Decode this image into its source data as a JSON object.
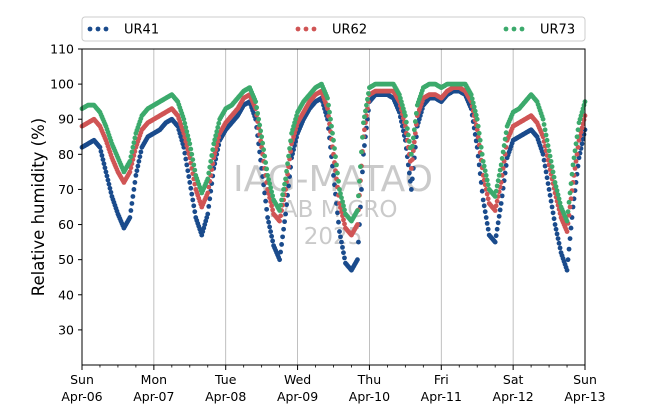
{
  "chart_data": {
    "type": "scatter",
    "title": "",
    "xlabel": "",
    "ylabel": "Relative humidity (%)",
    "ylim": [
      20,
      110
    ],
    "yticks": [
      30,
      40,
      50,
      60,
      70,
      80,
      90,
      100,
      110
    ],
    "xlim": [
      "2025-04-06 00:00",
      "2025-04-13 00:00"
    ],
    "x_ticks": [
      {
        "day": "Sun",
        "date": "Apr-06"
      },
      {
        "day": "Mon",
        "date": "Apr-07"
      },
      {
        "day": "Tue",
        "date": "Apr-08"
      },
      {
        "day": "Wed",
        "date": "Apr-09"
      },
      {
        "day": "Thu",
        "date": "Apr-10"
      },
      {
        "day": "Fri",
        "date": "Apr-11"
      },
      {
        "day": "Sat",
        "date": "Apr-12"
      },
      {
        "day": "Sun",
        "date": "Apr-13"
      }
    ],
    "x_minor_ticks_per_day": 4,
    "grid": "vertical at day boundaries",
    "legend_position": "top",
    "watermark": [
      "IAG-MATAO",
      "LAB MICRO",
      "2025"
    ],
    "sampling": "hourly",
    "series": [
      {
        "name": "UR41",
        "color": "#1a4b8c",
        "points": [
          [
            "2025-04-06 00:00",
            82
          ],
          [
            "2025-04-06 02:00",
            83
          ],
          [
            "2025-04-06 04:00",
            84
          ],
          [
            "2025-04-06 06:00",
            82
          ],
          [
            "2025-04-06 08:00",
            75
          ],
          [
            "2025-04-06 10:00",
            68
          ],
          [
            "2025-04-06 12:00",
            63
          ],
          [
            "2025-04-06 14:00",
            59
          ],
          [
            "2025-04-06 16:00",
            62
          ],
          [
            "2025-04-06 18:00",
            74
          ],
          [
            "2025-04-06 20:00",
            82
          ],
          [
            "2025-04-06 22:00",
            85
          ],
          [
            "2025-04-07 00:00",
            86
          ],
          [
            "2025-04-07 02:00",
            87
          ],
          [
            "2025-04-07 04:00",
            89
          ],
          [
            "2025-04-07 06:00",
            90
          ],
          [
            "2025-04-07 08:00",
            88
          ],
          [
            "2025-04-07 10:00",
            82
          ],
          [
            "2025-04-07 12:00",
            72
          ],
          [
            "2025-04-07 14:00",
            62
          ],
          [
            "2025-04-07 16:00",
            57
          ],
          [
            "2025-04-07 18:00",
            63
          ],
          [
            "2025-04-07 20:00",
            76
          ],
          [
            "2025-04-07 22:00",
            84
          ],
          [
            "2025-04-08 00:00",
            87
          ],
          [
            "2025-04-08 02:00",
            89
          ],
          [
            "2025-04-08 04:00",
            91
          ],
          [
            "2025-04-08 06:00",
            94
          ],
          [
            "2025-04-08 08:00",
            95
          ],
          [
            "2025-04-08 10:00",
            90
          ],
          [
            "2025-04-08 12:00",
            76
          ],
          [
            "2025-04-08 14:00",
            62
          ],
          [
            "2025-04-08 16:00",
            54
          ],
          [
            "2025-04-08 18:00",
            50
          ],
          [
            "2025-04-08 20:00",
            63
          ],
          [
            "2025-04-08 22:00",
            79
          ],
          [
            "2025-04-09 00:00",
            86
          ],
          [
            "2025-04-09 02:00",
            90
          ],
          [
            "2025-04-09 04:00",
            93
          ],
          [
            "2025-04-09 06:00",
            95
          ],
          [
            "2025-04-09 08:00",
            96
          ],
          [
            "2025-04-09 10:00",
            90
          ],
          [
            "2025-04-09 12:00",
            74
          ],
          [
            "2025-04-09 14:00",
            58
          ],
          [
            "2025-04-09 16:00",
            49
          ],
          [
            "2025-04-09 18:00",
            47
          ],
          [
            "2025-04-09 20:00",
            50
          ],
          [
            "2025-04-09 22:00",
            80
          ],
          [
            "2025-04-10 00:00",
            95
          ],
          [
            "2025-04-10 02:00",
            97
          ],
          [
            "2025-04-10 04:00",
            97
          ],
          [
            "2025-04-10 06:00",
            97
          ],
          [
            "2025-04-10 08:00",
            96
          ],
          [
            "2025-04-10 10:00",
            92
          ],
          [
            "2025-04-10 12:00",
            84
          ],
          [
            "2025-04-10 14:00",
            70
          ],
          [
            "2025-04-10 16:00",
            88
          ],
          [
            "2025-04-10 18:00",
            94
          ],
          [
            "2025-04-10 20:00",
            96
          ],
          [
            "2025-04-10 22:00",
            96
          ],
          [
            "2025-04-11 00:00",
            95
          ],
          [
            "2025-04-11 02:00",
            97
          ],
          [
            "2025-04-11 04:00",
            98
          ],
          [
            "2025-04-11 06:00",
            98
          ],
          [
            "2025-04-11 08:00",
            97
          ],
          [
            "2025-04-11 10:00",
            93
          ],
          [
            "2025-04-11 12:00",
            82
          ],
          [
            "2025-04-11 14:00",
            67
          ],
          [
            "2025-04-11 16:00",
            57
          ],
          [
            "2025-04-11 18:00",
            55
          ],
          [
            "2025-04-11 20:00",
            66
          ],
          [
            "2025-04-11 22:00",
            79
          ],
          [
            "2025-04-12 00:00",
            84
          ],
          [
            "2025-04-12 02:00",
            85
          ],
          [
            "2025-04-12 04:00",
            86
          ],
          [
            "2025-04-12 06:00",
            87
          ],
          [
            "2025-04-12 08:00",
            85
          ],
          [
            "2025-04-12 10:00",
            80
          ],
          [
            "2025-04-12 12:00",
            70
          ],
          [
            "2025-04-12 14:00",
            60
          ],
          [
            "2025-04-12 16:00",
            52
          ],
          [
            "2025-04-12 18:00",
            47
          ],
          [
            "2025-04-12 20:00",
            65
          ],
          [
            "2025-04-12 22:00",
            79
          ],
          [
            "2025-04-13 00:00",
            87
          ]
        ]
      },
      {
        "name": "UR62",
        "color": "#d05555",
        "points": [
          [
            "2025-04-06 00:00",
            88
          ],
          [
            "2025-04-06 02:00",
            89
          ],
          [
            "2025-04-06 04:00",
            90
          ],
          [
            "2025-04-06 06:00",
            88
          ],
          [
            "2025-04-06 08:00",
            84
          ],
          [
            "2025-04-06 10:00",
            79
          ],
          [
            "2025-04-06 12:00",
            75
          ],
          [
            "2025-04-06 14:00",
            72
          ],
          [
            "2025-04-06 16:00",
            75
          ],
          [
            "2025-04-06 18:00",
            82
          ],
          [
            "2025-04-06 20:00",
            87
          ],
          [
            "2025-04-06 22:00",
            89
          ],
          [
            "2025-04-07 00:00",
            90
          ],
          [
            "2025-04-07 02:00",
            91
          ],
          [
            "2025-04-07 04:00",
            92
          ],
          [
            "2025-04-07 06:00",
            93
          ],
          [
            "2025-04-07 08:00",
            91
          ],
          [
            "2025-04-07 10:00",
            86
          ],
          [
            "2025-04-07 12:00",
            79
          ],
          [
            "2025-04-07 14:00",
            70
          ],
          [
            "2025-04-07 16:00",
            65
          ],
          [
            "2025-04-07 18:00",
            69
          ],
          [
            "2025-04-07 20:00",
            79
          ],
          [
            "2025-04-07 22:00",
            86
          ],
          [
            "2025-04-08 00:00",
            89
          ],
          [
            "2025-04-08 02:00",
            91
          ],
          [
            "2025-04-08 04:00",
            93
          ],
          [
            "2025-04-08 06:00",
            96
          ],
          [
            "2025-04-08 08:00",
            97
          ],
          [
            "2025-04-08 10:00",
            93
          ],
          [
            "2025-04-08 12:00",
            82
          ],
          [
            "2025-04-08 14:00",
            70
          ],
          [
            "2025-04-08 16:00",
            63
          ],
          [
            "2025-04-08 18:00",
            61
          ],
          [
            "2025-04-08 20:00",
            70
          ],
          [
            "2025-04-08 22:00",
            83
          ],
          [
            "2025-04-09 00:00",
            89
          ],
          [
            "2025-04-09 02:00",
            92
          ],
          [
            "2025-04-09 04:00",
            95
          ],
          [
            "2025-04-09 06:00",
            97
          ],
          [
            "2025-04-09 08:00",
            98
          ],
          [
            "2025-04-09 10:00",
            93
          ],
          [
            "2025-04-09 12:00",
            80
          ],
          [
            "2025-04-09 14:00",
            66
          ],
          [
            "2025-04-09 16:00",
            59
          ],
          [
            "2025-04-09 18:00",
            57
          ],
          [
            "2025-04-09 20:00",
            60
          ],
          [
            "2025-04-09 22:00",
            85
          ],
          [
            "2025-04-10 00:00",
            97
          ],
          [
            "2025-04-10 02:00",
            98
          ],
          [
            "2025-04-10 04:00",
            98
          ],
          [
            "2025-04-10 06:00",
            98
          ],
          [
            "2025-04-10 08:00",
            98
          ],
          [
            "2025-04-10 10:00",
            95
          ],
          [
            "2025-04-10 12:00",
            88
          ],
          [
            "2025-04-10 14:00",
            76
          ],
          [
            "2025-04-10 16:00",
            91
          ],
          [
            "2025-04-10 18:00",
            96
          ],
          [
            "2025-04-10 20:00",
            97
          ],
          [
            "2025-04-10 22:00",
            97
          ],
          [
            "2025-04-11 00:00",
            96
          ],
          [
            "2025-04-11 02:00",
            98
          ],
          [
            "2025-04-11 04:00",
            99
          ],
          [
            "2025-04-11 06:00",
            99
          ],
          [
            "2025-04-11 08:00",
            98
          ],
          [
            "2025-04-11 10:00",
            95
          ],
          [
            "2025-04-11 12:00",
            87
          ],
          [
            "2025-04-11 14:00",
            74
          ],
          [
            "2025-04-11 16:00",
            66
          ],
          [
            "2025-04-11 18:00",
            64
          ],
          [
            "2025-04-11 20:00",
            72
          ],
          [
            "2025-04-11 22:00",
            84
          ],
          [
            "2025-04-12 00:00",
            88
          ],
          [
            "2025-04-12 02:00",
            89
          ],
          [
            "2025-04-12 04:00",
            90
          ],
          [
            "2025-04-12 06:00",
            91
          ],
          [
            "2025-04-12 08:00",
            89
          ],
          [
            "2025-04-12 10:00",
            85
          ],
          [
            "2025-04-12 12:00",
            77
          ],
          [
            "2025-04-12 14:00",
            69
          ],
          [
            "2025-04-12 16:00",
            62
          ],
          [
            "2025-04-12 18:00",
            58
          ],
          [
            "2025-04-12 20:00",
            72
          ],
          [
            "2025-04-12 22:00",
            84
          ],
          [
            "2025-04-13 00:00",
            91
          ]
        ]
      },
      {
        "name": "UR73",
        "color": "#3caa6c",
        "points": [
          [
            "2025-04-06 00:00",
            93
          ],
          [
            "2025-04-06 02:00",
            94
          ],
          [
            "2025-04-06 04:00",
            94
          ],
          [
            "2025-04-06 06:00",
            92
          ],
          [
            "2025-04-06 08:00",
            88
          ],
          [
            "2025-04-06 10:00",
            83
          ],
          [
            "2025-04-06 12:00",
            79
          ],
          [
            "2025-04-06 14:00",
            75
          ],
          [
            "2025-04-06 16:00",
            78
          ],
          [
            "2025-04-06 18:00",
            86
          ],
          [
            "2025-04-06 20:00",
            91
          ],
          [
            "2025-04-06 22:00",
            93
          ],
          [
            "2025-04-07 00:00",
            94
          ],
          [
            "2025-04-07 02:00",
            95
          ],
          [
            "2025-04-07 04:00",
            96
          ],
          [
            "2025-04-07 06:00",
            97
          ],
          [
            "2025-04-07 08:00",
            95
          ],
          [
            "2025-04-07 10:00",
            90
          ],
          [
            "2025-04-07 12:00",
            83
          ],
          [
            "2025-04-07 14:00",
            74
          ],
          [
            "2025-04-07 16:00",
            69
          ],
          [
            "2025-04-07 18:00",
            73
          ],
          [
            "2025-04-07 20:00",
            83
          ],
          [
            "2025-04-07 22:00",
            90
          ],
          [
            "2025-04-08 00:00",
            93
          ],
          [
            "2025-04-08 02:00",
            94
          ],
          [
            "2025-04-08 04:00",
            96
          ],
          [
            "2025-04-08 06:00",
            98
          ],
          [
            "2025-04-08 08:00",
            99
          ],
          [
            "2025-04-08 10:00",
            95
          ],
          [
            "2025-04-08 12:00",
            85
          ],
          [
            "2025-04-08 14:00",
            74
          ],
          [
            "2025-04-08 16:00",
            67
          ],
          [
            "2025-04-08 18:00",
            64
          ],
          [
            "2025-04-08 20:00",
            73
          ],
          [
            "2025-04-08 22:00",
            86
          ],
          [
            "2025-04-09 00:00",
            92
          ],
          [
            "2025-04-09 02:00",
            95
          ],
          [
            "2025-04-09 04:00",
            97
          ],
          [
            "2025-04-09 06:00",
            99
          ],
          [
            "2025-04-09 08:00",
            100
          ],
          [
            "2025-04-09 10:00",
            96
          ],
          [
            "2025-04-09 12:00",
            84
          ],
          [
            "2025-04-09 14:00",
            70
          ],
          [
            "2025-04-09 16:00",
            63
          ],
          [
            "2025-04-09 18:00",
            61
          ],
          [
            "2025-04-09 20:00",
            64
          ],
          [
            "2025-04-09 22:00",
            89
          ],
          [
            "2025-04-10 00:00",
            99
          ],
          [
            "2025-04-10 02:00",
            100
          ],
          [
            "2025-04-10 04:00",
            100
          ],
          [
            "2025-04-10 06:00",
            100
          ],
          [
            "2025-04-10 08:00",
            100
          ],
          [
            "2025-04-10 10:00",
            97
          ],
          [
            "2025-04-10 12:00",
            91
          ],
          [
            "2025-04-10 14:00",
            80
          ],
          [
            "2025-04-10 16:00",
            94
          ],
          [
            "2025-04-10 18:00",
            99
          ],
          [
            "2025-04-10 20:00",
            100
          ],
          [
            "2025-04-10 22:00",
            100
          ],
          [
            "2025-04-11 00:00",
            99
          ],
          [
            "2025-04-11 02:00",
            100
          ],
          [
            "2025-04-11 04:00",
            100
          ],
          [
            "2025-04-11 06:00",
            100
          ],
          [
            "2025-04-11 08:00",
            100
          ],
          [
            "2025-04-11 10:00",
            97
          ],
          [
            "2025-04-11 12:00",
            90
          ],
          [
            "2025-04-11 14:00",
            78
          ],
          [
            "2025-04-11 16:00",
            70
          ],
          [
            "2025-04-11 18:00",
            68
          ],
          [
            "2025-04-11 20:00",
            77
          ],
          [
            "2025-04-11 22:00",
            88
          ],
          [
            "2025-04-12 00:00",
            92
          ],
          [
            "2025-04-12 02:00",
            93
          ],
          [
            "2025-04-12 04:00",
            95
          ],
          [
            "2025-04-12 06:00",
            97
          ],
          [
            "2025-04-12 08:00",
            95
          ],
          [
            "2025-04-12 10:00",
            90
          ],
          [
            "2025-04-12 12:00",
            81
          ],
          [
            "2025-04-12 14:00",
            72
          ],
          [
            "2025-04-12 16:00",
            65
          ],
          [
            "2025-04-12 18:00",
            61
          ],
          [
            "2025-04-12 20:00",
            77
          ],
          [
            "2025-04-12 22:00",
            89
          ],
          [
            "2025-04-13 00:00",
            95
          ]
        ]
      }
    ]
  }
}
